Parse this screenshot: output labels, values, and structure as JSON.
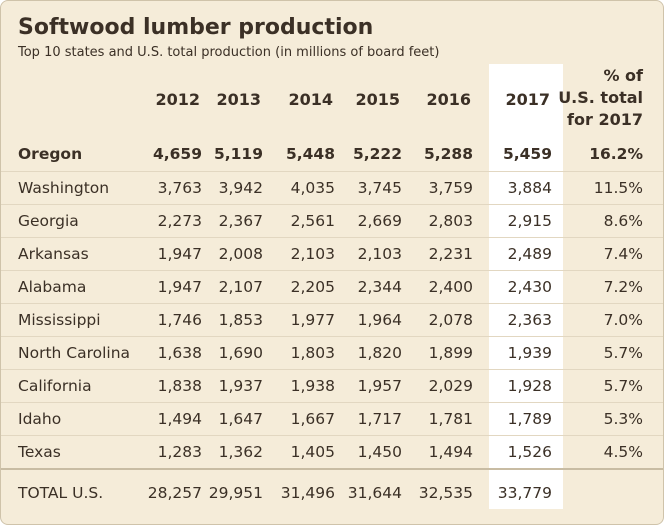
{
  "title": "Softwood lumber production",
  "subtitle": "Top 10 states and U.S. total production (in millions of board feet)",
  "columns": {
    "years": [
      "2012",
      "2013",
      "2014",
      "2015",
      "2016",
      "2017"
    ],
    "pct_line1": "% of",
    "pct_line2": "U.S. total",
    "pct_line3": "for 2017"
  },
  "rows": [
    {
      "state": "Oregon",
      "values": [
        "4,659",
        "5,119",
        "5,448",
        "5,222",
        "5,288",
        "5,459"
      ],
      "pct": "16.2%"
    },
    {
      "state": "Washington",
      "values": [
        "3,763",
        "3,942",
        "4,035",
        "3,745",
        "3,759",
        "3,884"
      ],
      "pct": "11.5%"
    },
    {
      "state": "Georgia",
      "values": [
        "2,273",
        "2,367",
        "2,561",
        "2,669",
        "2,803",
        "2,915"
      ],
      "pct": "8.6%"
    },
    {
      "state": "Arkansas",
      "values": [
        "1,947",
        "2,008",
        "2,103",
        "2,103",
        "2,231",
        "2,489"
      ],
      "pct": "7.4%"
    },
    {
      "state": "Alabama",
      "values": [
        "1,947",
        "2,107",
        "2,205",
        "2,344",
        "2,400",
        "2,430"
      ],
      "pct": "7.2%"
    },
    {
      "state": "Mississippi",
      "values": [
        "1,746",
        "1,853",
        "1,977",
        "1,964",
        "2,078",
        "2,363"
      ],
      "pct": "7.0%"
    },
    {
      "state": "North Carolina",
      "values": [
        "1,638",
        "1,690",
        "1,803",
        "1,820",
        "1,899",
        "1,939"
      ],
      "pct": "5.7%"
    },
    {
      "state": "California",
      "values": [
        "1,838",
        "1,937",
        "1,938",
        "1,957",
        "2,029",
        "1,928"
      ],
      "pct": "5.7%"
    },
    {
      "state": "Idaho",
      "values": [
        "1,494",
        "1,647",
        "1,667",
        "1,717",
        "1,781",
        "1,789"
      ],
      "pct": "5.3%"
    },
    {
      "state": "Texas",
      "values": [
        "1,283",
        "1,362",
        "1,405",
        "1,450",
        "1,494",
        "1,526"
      ],
      "pct": "4.5%"
    }
  ],
  "total": {
    "label": "TOTAL U.S.",
    "values": [
      "28,257",
      "29,951",
      "31,496",
      "31,644",
      "32,535",
      "33,779"
    ]
  },
  "colors": {
    "background": "#f5ecd9",
    "text": "#3b3026",
    "highlight_column": "#ffffff"
  }
}
